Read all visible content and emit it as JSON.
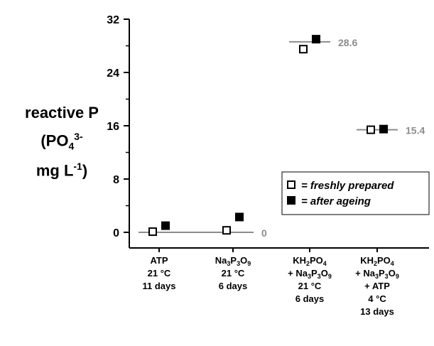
{
  "chart_data": {
    "type": "scatter",
    "ylabel_lines": [
      "reactive P",
      "(PO",
      "mg L",
      ")"
    ],
    "ylabel_parts": {
      "line1": "reactive P",
      "line2_main": "(PO",
      "line2_sub": "4",
      "line2_sup": "3-",
      "line3_main": "mg L",
      "line3_sup": "-1",
      "line3_tail": ")"
    },
    "ylim": [
      0,
      32
    ],
    "yticks": [
      0,
      8,
      16,
      24,
      32
    ],
    "grid": false,
    "legend_placement": "right",
    "categories": [
      [
        "ATP",
        "21 °C",
        "11 days"
      ],
      [
        "Na3P3O9",
        "21 °C",
        "6 days"
      ],
      [
        "KH2PO4",
        "+ Na3P3O9",
        "21 °C",
        "6 days"
      ],
      [
        "KH2PO4",
        "+ Na3P3O9",
        "+ ATP",
        "4 °C",
        "13 days"
      ]
    ],
    "series": [
      {
        "name": "= freshly prepared",
        "marker": "open-square",
        "values": [
          0.1,
          0.3,
          27.5,
          15.4
        ]
      },
      {
        "name": "= after ageing",
        "marker": "filled-square",
        "values": [
          1.0,
          2.3,
          29.0,
          15.5
        ]
      }
    ],
    "reference_lines": [
      {
        "category_span": [
          0,
          1
        ],
        "value": 0,
        "label": "0"
      },
      {
        "category_span": [
          2,
          2
        ],
        "value": 28.6,
        "label": "28.6"
      },
      {
        "category_span": [
          3,
          3
        ],
        "value": 15.4,
        "label": "15.4"
      }
    ],
    "colors": {
      "axis": "#000000",
      "reference_line": "#8c8c8c",
      "reference_label": "#8c8c8c",
      "marker_fill": "#000000",
      "marker_open": "#ffffff"
    }
  }
}
